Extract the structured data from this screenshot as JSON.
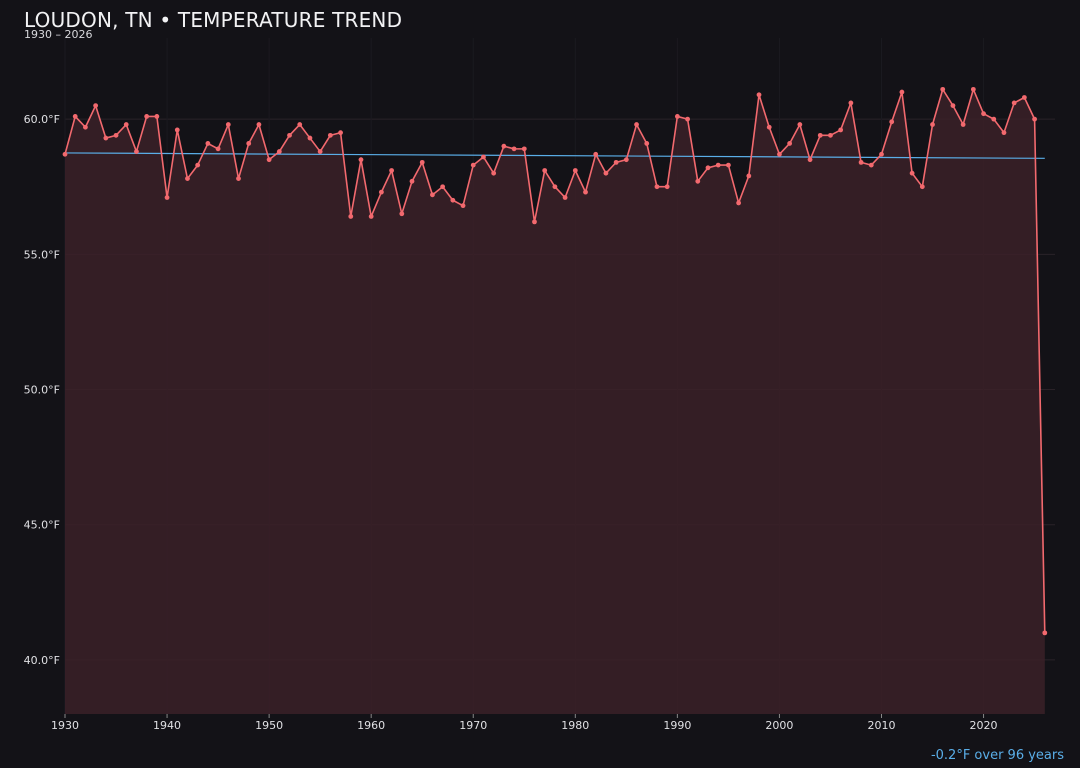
{
  "colors": {
    "background": "#131217",
    "series": "#f2696e",
    "area": "#3b2128",
    "trend": "#5aaee8",
    "grid": "#2a2228"
  },
  "chart_data": {
    "type": "line",
    "title": "LOUDON, TN • TEMPERATURE TREND",
    "subtitle": "1930 – 2026",
    "xlabel": "",
    "ylabel": "",
    "xlim": [
      1930,
      2027
    ],
    "ylim": [
      38,
      63
    ],
    "grid": true,
    "x_ticks": [
      1930,
      1940,
      1950,
      1960,
      1970,
      1980,
      1990,
      2000,
      2010,
      2020
    ],
    "y_ticks": [
      40,
      45,
      50,
      55,
      60
    ],
    "y_tick_labels": [
      "40.0°F",
      "45.0°F",
      "50.0°F",
      "55.0°F",
      "60.0°F"
    ],
    "x_tick_labels": [
      "1930",
      "1940",
      "1950",
      "1960",
      "1970",
      "1980",
      "1990",
      "2000",
      "2010",
      "2020"
    ],
    "trend_line": {
      "x": [
        1930,
        2026
      ],
      "y": [
        58.75,
        58.55
      ]
    },
    "trend_note": "-0.2°F over 96 years",
    "series": [
      {
        "x": [
          1930,
          1931,
          1932,
          1933,
          1934,
          1935,
          1936,
          1937,
          1938,
          1939,
          1940,
          1941,
          1942,
          1943,
          1944,
          1945,
          1946,
          1947,
          1948,
          1949,
          1950,
          1951,
          1952,
          1953,
          1954,
          1955,
          1956,
          1957,
          1958,
          1959,
          1960,
          1961,
          1962,
          1963,
          1964,
          1965,
          1966,
          1967,
          1968,
          1969,
          1970,
          1971,
          1972,
          1973,
          1974,
          1975,
          1976,
          1977,
          1978,
          1979,
          1980,
          1981,
          1982,
          1983,
          1984,
          1985,
          1986,
          1987,
          1988,
          1989,
          1990,
          1991,
          1992,
          1993,
          1994,
          1995,
          1996,
          1997,
          1998,
          1999,
          2000,
          2001,
          2002,
          2003,
          2004,
          2005,
          2006,
          2007,
          2008,
          2009,
          2010,
          2011,
          2012,
          2013,
          2014,
          2015,
          2016,
          2017,
          2018,
          2019,
          2020,
          2021,
          2022,
          2023,
          2024,
          2025,
          2026
        ],
        "y": [
          58.7,
          60.1,
          59.7,
          60.5,
          59.3,
          59.4,
          59.8,
          58.8,
          60.1,
          60.1,
          57.1,
          59.6,
          57.8,
          58.3,
          59.1,
          58.9,
          59.8,
          57.8,
          59.1,
          59.8,
          58.5,
          58.8,
          59.4,
          59.8,
          59.3,
          58.8,
          59.4,
          59.5,
          56.4,
          58.5,
          56.4,
          57.3,
          58.1,
          56.5,
          57.7,
          58.4,
          57.2,
          57.5,
          57.0,
          56.8,
          58.3,
          58.6,
          58.0,
          59.0,
          58.9,
          58.9,
          56.2,
          58.1,
          57.5,
          57.1,
          58.1,
          57.3,
          58.7,
          58.0,
          58.4,
          58.5,
          59.8,
          59.1,
          57.5,
          57.5,
          60.1,
          60.0,
          57.7,
          58.2,
          58.3,
          58.3,
          56.9,
          57.9,
          60.9,
          59.7,
          58.7,
          59.1,
          59.8,
          58.5,
          59.4,
          59.4,
          59.6,
          60.6,
          58.4,
          58.3,
          58.7,
          59.9,
          61.0,
          58.0,
          57.5,
          59.8,
          61.1,
          60.5,
          59.8,
          61.1,
          60.2,
          60.0,
          59.5,
          60.6,
          60.8,
          60.0,
          41.0
        ]
      }
    ]
  }
}
